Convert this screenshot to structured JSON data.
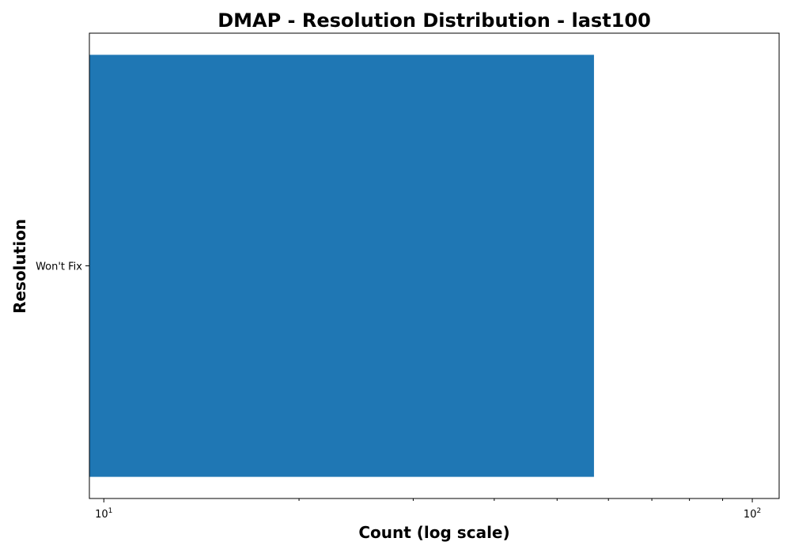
{
  "chart_data": {
    "type": "bar",
    "orientation": "horizontal",
    "title": "DMAP - Resolution Distribution - last100",
    "xlabel": "Count (log scale)",
    "ylabel": "Resolution",
    "x_scale": "log",
    "xlim": [
      9.5,
      110
    ],
    "categories": [
      "Won't Fix"
    ],
    "values": [
      57
    ],
    "bar_color": "#1f77b4",
    "major_ticks": [
      {
        "value": 10,
        "base": "10",
        "exp": "1"
      },
      {
        "value": 100,
        "base": "10",
        "exp": "2"
      }
    ],
    "minor_ticks": [
      20,
      30,
      40,
      50,
      60,
      70,
      80,
      90
    ],
    "grid": false,
    "legend": "none"
  }
}
